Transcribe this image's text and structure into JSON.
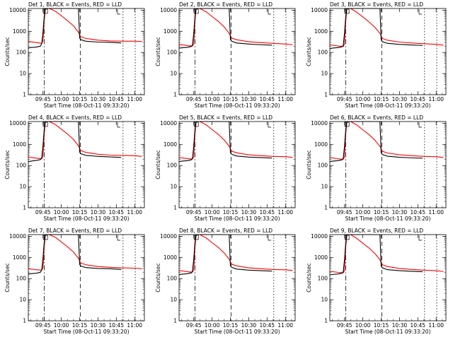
{
  "chart_data": [
    {
      "type": "line",
      "title": "Det 1, BLACK = Events, RED = LLD",
      "xlabel": "Start Time (08-Oct-11 09:33:20)",
      "ylabel": "Counts/sec",
      "yscale": "log",
      "ylim": [
        1,
        12000
      ],
      "xlim": [
        "09:33",
        "11:08"
      ],
      "x_ticks": [
        "09:45",
        "10:00",
        "10:15",
        "10:30",
        "10:45",
        "11:00"
      ],
      "y_ticks": [
        "1",
        "10",
        "100",
        "1000",
        "10000"
      ],
      "grid": false,
      "series": [
        {
          "color": "#000000",
          "x": [
            "09:33",
            "09:35",
            "09:40",
            "09:43",
            "09:44",
            "09:45",
            "09:46",
            "09:47",
            "10:14",
            "10:15",
            "10:16",
            "10:20",
            "10:30",
            "10:40",
            "10:49"
          ],
          "y": [
            160,
            170,
            180,
            200,
            260,
            900,
            5000,
            12000,
            12000,
            480,
            400,
            340,
            310,
            300,
            280
          ]
        },
        {
          "color": "#ff0000",
          "x": [
            "09:33",
            "09:40",
            "09:44",
            "09:45",
            "09:46",
            "09:47",
            "09:50",
            "09:55",
            "10:00",
            "10:05",
            "10:10",
            "10:14",
            "10:16",
            "10:20",
            "10:30",
            "10:40",
            "10:50",
            "11:00",
            "11:06"
          ],
          "y": [
            330,
            290,
            270,
            350,
            3000,
            12000,
            12000,
            9000,
            5500,
            3200,
            1800,
            900,
            550,
            460,
            380,
            350,
            340,
            340,
            330
          ]
        }
      ]
    },
    {
      "type": "line",
      "title": "Det 2, BLACK = Events, RED = LLD",
      "xlabel": "Start Time (08-Oct-11 09:33:20)",
      "ylabel": "Counts/sec",
      "yscale": "log",
      "ylim": [
        1,
        12000
      ],
      "xlim": [
        "09:33",
        "11:08"
      ],
      "x_ticks": [
        "09:45",
        "10:00",
        "10:15",
        "10:30",
        "10:45",
        "11:00"
      ],
      "y_ticks": [
        "1",
        "10",
        "100",
        "1000",
        "10000"
      ],
      "grid": false,
      "series": [
        {
          "color": "#000000",
          "x": [
            "09:33",
            "09:35",
            "09:40",
            "09:43",
            "09:44",
            "09:45",
            "09:46",
            "09:47",
            "10:14",
            "10:15",
            "10:16",
            "10:20",
            "10:30",
            "10:40",
            "10:49"
          ],
          "y": [
            160,
            165,
            175,
            190,
            230,
            800,
            5000,
            12000,
            12000,
            420,
            340,
            280,
            250,
            230,
            220
          ]
        },
        {
          "color": "#ff0000",
          "x": [
            "09:33",
            "09:40",
            "09:44",
            "09:45",
            "09:46",
            "09:47",
            "09:50",
            "09:55",
            "10:00",
            "10:05",
            "10:10",
            "10:14",
            "10:16",
            "10:20",
            "10:30",
            "10:40",
            "10:50",
            "11:00",
            "11:06"
          ],
          "y": [
            240,
            210,
            200,
            260,
            3000,
            12000,
            12000,
            8500,
            5000,
            3000,
            1600,
            800,
            480,
            400,
            320,
            290,
            270,
            250,
            230
          ]
        }
      ]
    },
    {
      "type": "line",
      "title": "Det 3, BLACK = Events, RED = LLD",
      "xlabel": "Start Time (08-Oct-11 09:33:20)",
      "ylabel": "Counts/sec",
      "yscale": "log",
      "ylim": [
        1,
        12000
      ],
      "xlim": [
        "09:33",
        "11:08"
      ],
      "x_ticks": [
        "09:45",
        "10:00",
        "10:15",
        "10:30",
        "10:45",
        "11:00"
      ],
      "y_ticks": [
        "1",
        "10",
        "100",
        "1000",
        "10000"
      ],
      "grid": false,
      "series": [
        {
          "color": "#000000",
          "x": [
            "09:33",
            "09:35",
            "09:40",
            "09:43",
            "09:44",
            "09:45",
            "09:46",
            "09:47",
            "10:14",
            "10:15",
            "10:16",
            "10:20",
            "10:30",
            "10:40",
            "10:49"
          ],
          "y": [
            150,
            160,
            170,
            185,
            220,
            800,
            5000,
            12000,
            12000,
            400,
            320,
            270,
            240,
            225,
            215
          ]
        },
        {
          "color": "#ff0000",
          "x": [
            "09:33",
            "09:40",
            "09:44",
            "09:45",
            "09:46",
            "09:47",
            "09:50",
            "09:55",
            "10:00",
            "10:05",
            "10:10",
            "10:14",
            "10:16",
            "10:20",
            "10:30",
            "10:40",
            "10:50",
            "11:00",
            "11:06"
          ],
          "y": [
            230,
            200,
            190,
            250,
            3000,
            12000,
            12000,
            8000,
            4800,
            2800,
            1500,
            800,
            460,
            380,
            310,
            280,
            260,
            240,
            220
          ]
        }
      ]
    },
    {
      "type": "line",
      "title": "Det 4, BLACK = Events, RED = LLD",
      "xlabel": "Start Time (08-Oct-11 09:33:20)",
      "ylabel": "Counts/sec",
      "yscale": "log",
      "ylim": [
        1,
        12000
      ],
      "xlim": [
        "09:33",
        "11:08"
      ],
      "x_ticks": [
        "09:45",
        "10:00",
        "10:15",
        "10:30",
        "10:45",
        "11:00"
      ],
      "y_ticks": [
        "1",
        "10",
        "100",
        "1000",
        "10000"
      ],
      "grid": false,
      "series": [
        {
          "color": "#000000",
          "x": [
            "09:33",
            "09:35",
            "09:40",
            "09:43",
            "09:44",
            "09:45",
            "09:46",
            "09:47",
            "10:14",
            "10:15",
            "10:16",
            "10:20",
            "10:30",
            "10:40",
            "10:49"
          ],
          "y": [
            150,
            160,
            175,
            190,
            240,
            850,
            5000,
            12000,
            12000,
            430,
            360,
            300,
            270,
            255,
            240
          ]
        },
        {
          "color": "#ff0000",
          "x": [
            "09:33",
            "09:40",
            "09:44",
            "09:45",
            "09:46",
            "09:47",
            "09:50",
            "09:55",
            "10:00",
            "10:05",
            "10:10",
            "10:14",
            "10:16",
            "10:20",
            "10:30",
            "10:40",
            "10:50",
            "11:00",
            "11:06"
          ],
          "y": [
            250,
            220,
            210,
            280,
            3000,
            12000,
            12000,
            8800,
            5200,
            3100,
            1700,
            850,
            500,
            420,
            340,
            310,
            300,
            290,
            270
          ]
        }
      ]
    },
    {
      "type": "line",
      "title": "Det 5, BLACK = Events, RED = LLD",
      "xlabel": "Start Time (08-Oct-11 09:33:20)",
      "ylabel": "Counts/sec",
      "yscale": "log",
      "ylim": [
        1,
        12000
      ],
      "xlim": [
        "09:33",
        "11:08"
      ],
      "x_ticks": [
        "09:45",
        "10:00",
        "10:15",
        "10:30",
        "10:45",
        "11:00"
      ],
      "y_ticks": [
        "1",
        "10",
        "100",
        "1000",
        "10000"
      ],
      "grid": false,
      "series": [
        {
          "color": "#000000",
          "x": [
            "09:33",
            "09:35",
            "09:40",
            "09:43",
            "09:44",
            "09:45",
            "09:46",
            "09:47",
            "10:14",
            "10:15",
            "10:16",
            "10:20",
            "10:30",
            "10:40",
            "10:49"
          ],
          "y": [
            150,
            160,
            170,
            185,
            230,
            820,
            5000,
            12000,
            12000,
            410,
            340,
            280,
            250,
            235,
            225
          ]
        },
        {
          "color": "#ff0000",
          "x": [
            "09:33",
            "09:40",
            "09:44",
            "09:45",
            "09:46",
            "09:47",
            "09:50",
            "09:55",
            "10:00",
            "10:05",
            "10:10",
            "10:14",
            "10:16",
            "10:20",
            "10:30",
            "10:40",
            "10:50",
            "11:00",
            "11:06"
          ],
          "y": [
            240,
            210,
            200,
            260,
            3000,
            12000,
            12000,
            8500,
            5000,
            3000,
            1600,
            820,
            480,
            400,
            320,
            290,
            270,
            260,
            240
          ]
        }
      ]
    },
    {
      "type": "line",
      "title": "Det 6, BLACK = Events, RED = LLD",
      "xlabel": "Start Time (08-Oct-11 09:33:20)",
      "ylabel": "Counts/sec",
      "yscale": "log",
      "ylim": [
        1,
        12000
      ],
      "xlim": [
        "09:33",
        "11:08"
      ],
      "x_ticks": [
        "09:45",
        "10:00",
        "10:15",
        "10:30",
        "10:45",
        "11:00"
      ],
      "y_ticks": [
        "1",
        "10",
        "100",
        "1000",
        "10000"
      ],
      "grid": false,
      "series": [
        {
          "color": "#000000",
          "x": [
            "09:33",
            "09:35",
            "09:40",
            "09:43",
            "09:44",
            "09:45",
            "09:46",
            "09:47",
            "10:14",
            "10:15",
            "10:16",
            "10:20",
            "10:30",
            "10:40",
            "10:49"
          ],
          "y": [
            150,
            160,
            170,
            185,
            225,
            800,
            5000,
            12000,
            12000,
            400,
            330,
            275,
            245,
            230,
            220
          ]
        },
        {
          "color": "#ff0000",
          "x": [
            "09:33",
            "09:40",
            "09:44",
            "09:45",
            "09:46",
            "09:47",
            "09:50",
            "09:55",
            "10:00",
            "10:05",
            "10:10",
            "10:14",
            "10:16",
            "10:20",
            "10:30",
            "10:40",
            "10:50",
            "11:00",
            "11:06"
          ],
          "y": [
            240,
            205,
            195,
            255,
            3000,
            12000,
            12000,
            8300,
            4900,
            2900,
            1550,
            800,
            470,
            390,
            320,
            290,
            270,
            260,
            240
          ]
        }
      ]
    },
    {
      "type": "line",
      "title": "Det 7, BLACK = Events, RED = LLD",
      "xlabel": "Start Time (08-Oct-11 09:33:20)",
      "ylabel": "Counts/sec",
      "yscale": "log",
      "ylim": [
        1,
        12000
      ],
      "xlim": [
        "09:33",
        "11:08"
      ],
      "x_ticks": [
        "09:45",
        "10:00",
        "10:15",
        "10:30",
        "10:45",
        "11:00"
      ],
      "y_ticks": [
        "1",
        "10",
        "100",
        "1000",
        "10000"
      ],
      "grid": false,
      "series": [
        {
          "color": "#000000",
          "x": [
            "09:33",
            "09:35",
            "09:40",
            "09:43",
            "09:44",
            "09:45",
            "09:46",
            "09:47",
            "10:14",
            "10:15",
            "10:16",
            "10:20",
            "10:30",
            "10:40",
            "10:49"
          ],
          "y": [
            160,
            170,
            180,
            200,
            260,
            900,
            5000,
            12000,
            12000,
            470,
            390,
            330,
            300,
            290,
            270
          ]
        },
        {
          "color": "#ff0000",
          "x": [
            "09:33",
            "09:40",
            "09:44",
            "09:45",
            "09:46",
            "09:47",
            "09:50",
            "09:55",
            "10:00",
            "10:05",
            "10:10",
            "10:14",
            "10:16",
            "10:20",
            "10:30",
            "10:40",
            "10:50",
            "11:00",
            "11:06"
          ],
          "y": [
            290,
            260,
            250,
            320,
            3000,
            12000,
            12000,
            9000,
            5400,
            3200,
            1800,
            900,
            540,
            450,
            370,
            340,
            320,
            310,
            290
          ]
        }
      ]
    },
    {
      "type": "line",
      "title": "Det 8, BLACK = Events, RED = LLD",
      "xlabel": "Start Time (08-Oct-11 09:33:20)",
      "ylabel": "Counts/sec",
      "yscale": "log",
      "ylim": [
        1,
        12000
      ],
      "xlim": [
        "09:33",
        "11:08"
      ],
      "x_ticks": [
        "09:45",
        "10:00",
        "10:15",
        "10:30",
        "10:45",
        "11:00"
      ],
      "y_ticks": [
        "1",
        "10",
        "100",
        "1000",
        "10000"
      ],
      "grid": false,
      "series": [
        {
          "color": "#000000",
          "x": [
            "09:33",
            "09:35",
            "09:40",
            "09:43",
            "09:44",
            "09:45",
            "09:46",
            "09:47",
            "10:14",
            "10:15",
            "10:16",
            "10:20",
            "10:30",
            "10:40",
            "10:49"
          ],
          "y": [
            150,
            160,
            170,
            185,
            230,
            820,
            5000,
            12000,
            12000,
            410,
            340,
            280,
            250,
            235,
            225
          ]
        },
        {
          "color": "#ff0000",
          "x": [
            "09:33",
            "09:40",
            "09:44",
            "09:45",
            "09:46",
            "09:47",
            "09:50",
            "09:55",
            "10:00",
            "10:05",
            "10:10",
            "10:14",
            "10:16",
            "10:20",
            "10:30",
            "10:40",
            "10:50",
            "11:00",
            "11:06"
          ],
          "y": [
            240,
            210,
            200,
            260,
            3000,
            12000,
            12000,
            8500,
            5000,
            3000,
            1600,
            820,
            480,
            400,
            320,
            290,
            270,
            260,
            240
          ]
        }
      ]
    },
    {
      "type": "line",
      "title": "Det 9, BLACK = Events, RED = LLD",
      "xlabel": "Start Time (08-Oct-11 09:33:20)",
      "ylabel": "Counts/sec",
      "yscale": "log",
      "ylim": [
        1,
        12000
      ],
      "xlim": [
        "09:33",
        "11:08"
      ],
      "x_ticks": [
        "09:45",
        "10:00",
        "10:15",
        "10:30",
        "10:45",
        "11:00"
      ],
      "y_ticks": [
        "1",
        "10",
        "100",
        "1000",
        "10000"
      ],
      "grid": false,
      "series": [
        {
          "color": "#000000",
          "x": [
            "09:33",
            "09:35",
            "09:40",
            "09:43",
            "09:44",
            "09:45",
            "09:46",
            "09:47",
            "10:14",
            "10:15",
            "10:16",
            "10:20",
            "10:30",
            "10:40",
            "10:49"
          ],
          "y": [
            150,
            155,
            165,
            180,
            215,
            780,
            5000,
            12000,
            12000,
            390,
            320,
            265,
            235,
            220,
            210
          ]
        },
        {
          "color": "#ff0000",
          "x": [
            "09:33",
            "09:40",
            "09:44",
            "09:45",
            "09:46",
            "09:47",
            "09:50",
            "09:55",
            "10:00",
            "10:05",
            "10:10",
            "10:14",
            "10:16",
            "10:20",
            "10:30",
            "10:40",
            "10:50",
            "11:00",
            "11:06"
          ],
          "y": [
            220,
            195,
            185,
            245,
            3000,
            12000,
            12000,
            8000,
            4700,
            2800,
            1500,
            780,
            450,
            370,
            300,
            270,
            250,
            235,
            215
          ]
        }
      ]
    }
  ]
}
